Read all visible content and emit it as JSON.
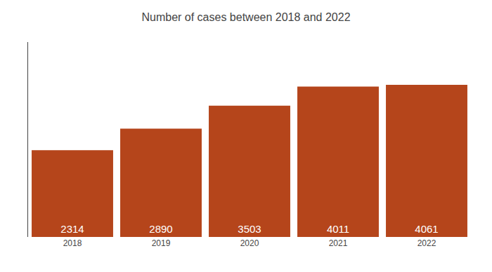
{
  "chart_data": {
    "type": "bar",
    "title": "Number of cases between 2018 and 2022",
    "categories": [
      "2018",
      "2019",
      "2020",
      "2021",
      "2022"
    ],
    "values": [
      2314,
      2890,
      3503,
      4011,
      4061
    ],
    "color": "#b5451b",
    "ylim": [
      0,
      5200
    ],
    "grid": false,
    "data_labels": true,
    "tick_labels": "x"
  }
}
